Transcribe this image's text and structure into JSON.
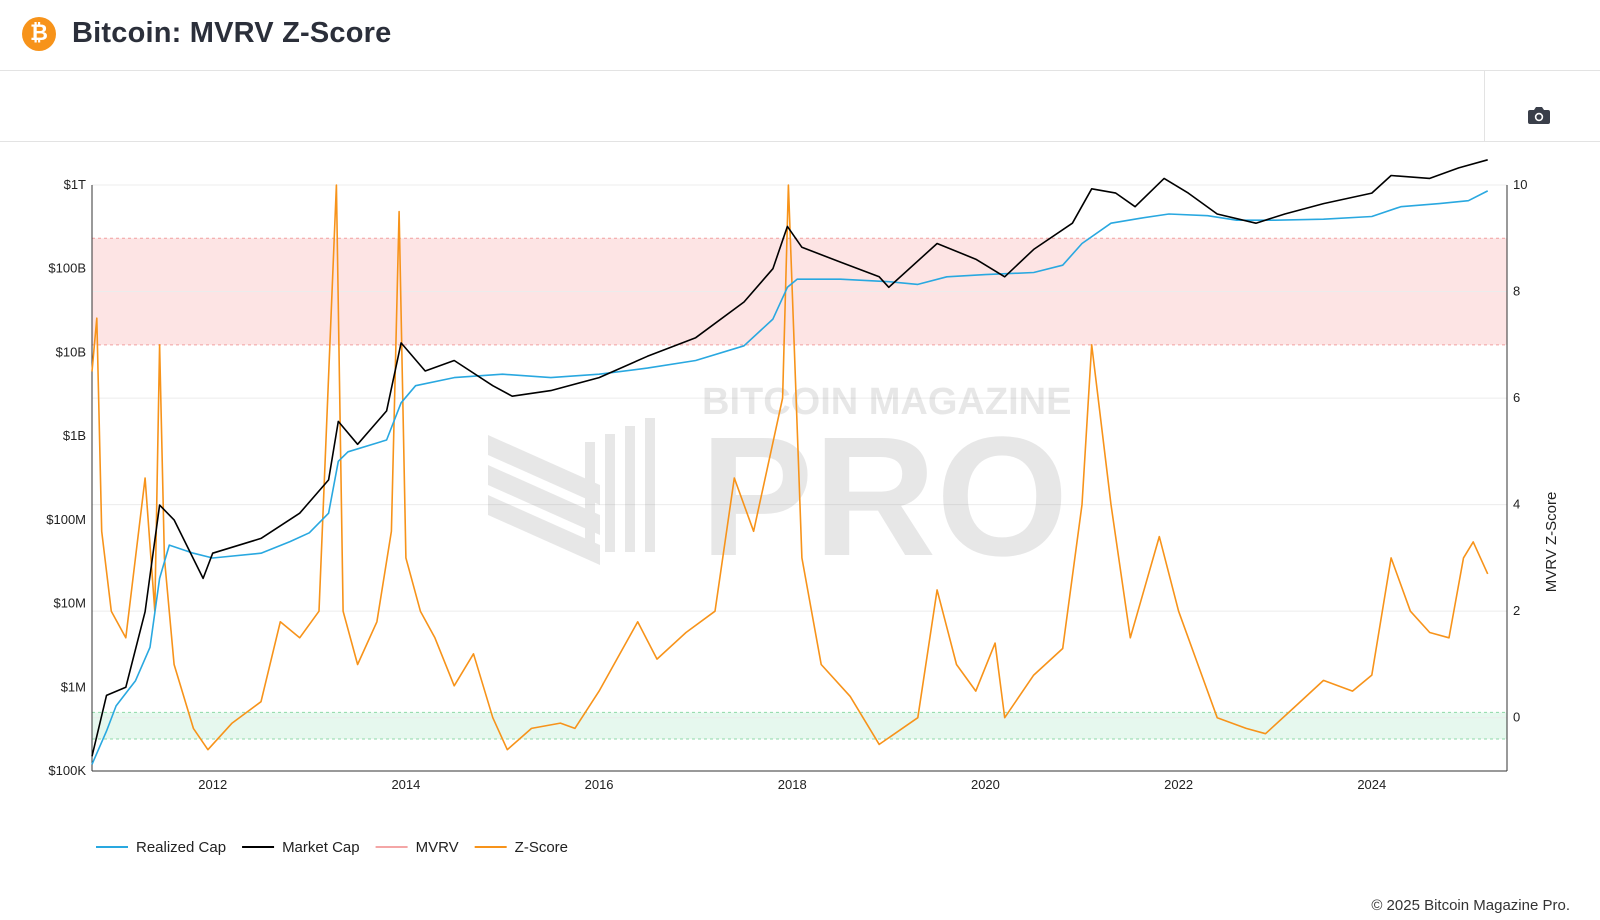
{
  "header": {
    "title": "Bitcoin: MVRV Z-Score",
    "logo_icon": "bitcoin-logo-icon"
  },
  "toolbar": {
    "camera_icon": "camera-icon"
  },
  "footer": {
    "copyright": "© 2025 Bitcoin Magazine Pro."
  },
  "watermark": {
    "line1": "BITCOIN MAGAZINE",
    "line2": "PRO"
  },
  "colors": {
    "realized": "#29a8e0",
    "market": "#000000",
    "mvrv": "#f4a6a6",
    "zscore": "#f7931a",
    "red_band": "#fde4e4",
    "green_band": "#e6f8ee"
  },
  "chart_data": {
    "type": "line",
    "xlabel": "",
    "ylabel_left": "",
    "ylabel_right": "MVRV Z-Score",
    "x_ticks": [
      "2012",
      "2014",
      "2016",
      "2018",
      "2020",
      "2022",
      "2024"
    ],
    "x_range": [
      2010.75,
      2025.4
    ],
    "left_axis": {
      "scale": "log",
      "range": [
        100000,
        1000000000000
      ],
      "ticks": [
        "$100K",
        "$1M",
        "$10M",
        "$100M",
        "$1B",
        "$10B",
        "$100B",
        "$1T"
      ]
    },
    "right_axis": {
      "scale": "linear",
      "range": [
        -1,
        10
      ],
      "ticks": [
        "0",
        "2",
        "4",
        "6",
        "8",
        "10"
      ]
    },
    "bands": {
      "red_zone": [
        7,
        9
      ],
      "green_zone": [
        -0.4,
        0.1
      ]
    },
    "legend": {
      "position": "bottom-left",
      "items": [
        {
          "label": "Realized Cap",
          "key": "realized",
          "muted": false
        },
        {
          "label": "Market Cap",
          "key": "market",
          "muted": false
        },
        {
          "label": "MVRV",
          "key": "mvrv",
          "muted": true
        },
        {
          "label": "Z-Score",
          "key": "zscore",
          "muted": false
        }
      ]
    },
    "series": [
      {
        "name": "Realized Cap",
        "unit": "usd",
        "points": [
          [
            2010.75,
            120000
          ],
          [
            2010.9,
            300000
          ],
          [
            2011.0,
            600000
          ],
          [
            2011.2,
            1200000
          ],
          [
            2011.35,
            3000000
          ],
          [
            2011.45,
            20000000
          ],
          [
            2011.55,
            50000000
          ],
          [
            2011.8,
            40000000
          ],
          [
            2012.0,
            35000000
          ],
          [
            2012.5,
            40000000
          ],
          [
            2012.8,
            55000000
          ],
          [
            2013.0,
            70000000
          ],
          [
            2013.2,
            120000000
          ],
          [
            2013.3,
            500000000
          ],
          [
            2013.4,
            650000000
          ],
          [
            2013.8,
            900000000
          ],
          [
            2013.95,
            2500000000
          ],
          [
            2014.1,
            4000000000
          ],
          [
            2014.5,
            5000000000
          ],
          [
            2015.0,
            5500000000
          ],
          [
            2015.5,
            5000000000
          ],
          [
            2016.0,
            5500000000
          ],
          [
            2016.5,
            6500000000
          ],
          [
            2017.0,
            8000000000
          ],
          [
            2017.5,
            12000000000
          ],
          [
            2017.8,
            25000000000
          ],
          [
            2017.95,
            60000000000
          ],
          [
            2018.05,
            75000000000
          ],
          [
            2018.5,
            75000000000
          ],
          [
            2019.0,
            70000000000
          ],
          [
            2019.3,
            65000000000
          ],
          [
            2019.6,
            80000000000
          ],
          [
            2020.0,
            85000000000
          ],
          [
            2020.5,
            90000000000
          ],
          [
            2020.8,
            110000000000
          ],
          [
            2021.0,
            200000000000
          ],
          [
            2021.3,
            350000000000
          ],
          [
            2021.6,
            400000000000
          ],
          [
            2021.9,
            450000000000
          ],
          [
            2022.3,
            430000000000
          ],
          [
            2022.6,
            380000000000
          ],
          [
            2023.0,
            380000000000
          ],
          [
            2023.5,
            390000000000
          ],
          [
            2024.0,
            420000000000
          ],
          [
            2024.3,
            550000000000
          ],
          [
            2024.7,
            600000000000
          ],
          [
            2025.0,
            650000000000
          ],
          [
            2025.2,
            850000000000
          ]
        ]
      },
      {
        "name": "Market Cap",
        "unit": "usd",
        "points": [
          [
            2010.75,
            150000
          ],
          [
            2010.9,
            800000
          ],
          [
            2011.1,
            1000000
          ],
          [
            2011.3,
            8000000
          ],
          [
            2011.45,
            150000000
          ],
          [
            2011.6,
            100000000
          ],
          [
            2011.9,
            20000000
          ],
          [
            2012.0,
            40000000
          ],
          [
            2012.5,
            60000000
          ],
          [
            2012.9,
            120000000
          ],
          [
            2013.2,
            300000000
          ],
          [
            2013.3,
            1500000000
          ],
          [
            2013.5,
            800000000
          ],
          [
            2013.8,
            2000000000
          ],
          [
            2013.95,
            13000000000
          ],
          [
            2014.2,
            6000000000
          ],
          [
            2014.5,
            8000000000
          ],
          [
            2014.9,
            4000000000
          ],
          [
            2015.1,
            3000000000
          ],
          [
            2015.5,
            3500000000
          ],
          [
            2016.0,
            5000000000
          ],
          [
            2016.5,
            9000000000
          ],
          [
            2017.0,
            15000000000
          ],
          [
            2017.5,
            40000000000
          ],
          [
            2017.8,
            100000000000
          ],
          [
            2017.95,
            320000000000
          ],
          [
            2018.1,
            180000000000
          ],
          [
            2018.5,
            120000000000
          ],
          [
            2018.9,
            80000000000
          ],
          [
            2019.0,
            60000000000
          ],
          [
            2019.5,
            200000000000
          ],
          [
            2019.9,
            130000000000
          ],
          [
            2020.2,
            80000000000
          ],
          [
            2020.5,
            170000000000
          ],
          [
            2020.9,
            350000000000
          ],
          [
            2021.1,
            900000000000
          ],
          [
            2021.35,
            800000000000
          ],
          [
            2021.55,
            550000000000
          ],
          [
            2021.85,
            1200000000000
          ],
          [
            2022.1,
            800000000000
          ],
          [
            2022.4,
            450000000000
          ],
          [
            2022.8,
            350000000000
          ],
          [
            2023.1,
            450000000000
          ],
          [
            2023.5,
            600000000000
          ],
          [
            2024.0,
            800000000000
          ],
          [
            2024.2,
            1300000000000
          ],
          [
            2024.6,
            1200000000000
          ],
          [
            2024.9,
            1600000000000
          ],
          [
            2025.2,
            2000000000000
          ]
        ]
      },
      {
        "name": "Z-Score",
        "unit": "z",
        "points": [
          [
            2010.75,
            6.5
          ],
          [
            2010.8,
            7.5
          ],
          [
            2010.85,
            3.5
          ],
          [
            2010.95,
            2
          ],
          [
            2011.1,
            1.5
          ],
          [
            2011.3,
            4.5
          ],
          [
            2011.4,
            2
          ],
          [
            2011.45,
            7
          ],
          [
            2011.5,
            3
          ],
          [
            2011.6,
            1
          ],
          [
            2011.8,
            -0.2
          ],
          [
            2011.95,
            -0.6
          ],
          [
            2012.2,
            -0.1
          ],
          [
            2012.5,
            0.3
          ],
          [
            2012.7,
            1.8
          ],
          [
            2012.9,
            1.5
          ],
          [
            2013.1,
            2
          ],
          [
            2013.28,
            10
          ],
          [
            2013.35,
            2
          ],
          [
            2013.5,
            1
          ],
          [
            2013.7,
            1.8
          ],
          [
            2013.85,
            3.5
          ],
          [
            2013.93,
            9.5
          ],
          [
            2014.0,
            3
          ],
          [
            2014.15,
            2
          ],
          [
            2014.3,
            1.5
          ],
          [
            2014.5,
            0.6
          ],
          [
            2014.7,
            1.2
          ],
          [
            2014.9,
            0
          ],
          [
            2015.05,
            -0.6
          ],
          [
            2015.3,
            -0.2
          ],
          [
            2015.6,
            -0.1
          ],
          [
            2015.75,
            -0.2
          ],
          [
            2016.0,
            0.5
          ],
          [
            2016.4,
            1.8
          ],
          [
            2016.6,
            1.1
          ],
          [
            2016.9,
            1.6
          ],
          [
            2017.2,
            2
          ],
          [
            2017.4,
            4.5
          ],
          [
            2017.6,
            3.5
          ],
          [
            2017.9,
            6
          ],
          [
            2017.96,
            10
          ],
          [
            2018.1,
            3
          ],
          [
            2018.3,
            1
          ],
          [
            2018.6,
            0.4
          ],
          [
            2018.9,
            -0.5
          ],
          [
            2019.3,
            0
          ],
          [
            2019.5,
            2.4
          ],
          [
            2019.7,
            1
          ],
          [
            2019.9,
            0.5
          ],
          [
            2020.1,
            1.4
          ],
          [
            2020.2,
            0
          ],
          [
            2020.5,
            0.8
          ],
          [
            2020.8,
            1.3
          ],
          [
            2021.0,
            4
          ],
          [
            2021.1,
            7
          ],
          [
            2021.3,
            4
          ],
          [
            2021.5,
            1.5
          ],
          [
            2021.8,
            3.4
          ],
          [
            2022.0,
            2
          ],
          [
            2022.2,
            1
          ],
          [
            2022.4,
            0
          ],
          [
            2022.7,
            -0.2
          ],
          [
            2022.9,
            -0.3
          ],
          [
            2023.2,
            0.2
          ],
          [
            2023.5,
            0.7
          ],
          [
            2023.8,
            0.5
          ],
          [
            2024.0,
            0.8
          ],
          [
            2024.2,
            3
          ],
          [
            2024.4,
            2
          ],
          [
            2024.6,
            1.6
          ],
          [
            2024.8,
            1.5
          ],
          [
            2024.95,
            3
          ],
          [
            2025.05,
            3.3
          ],
          [
            2025.2,
            2.7
          ]
        ]
      }
    ]
  }
}
